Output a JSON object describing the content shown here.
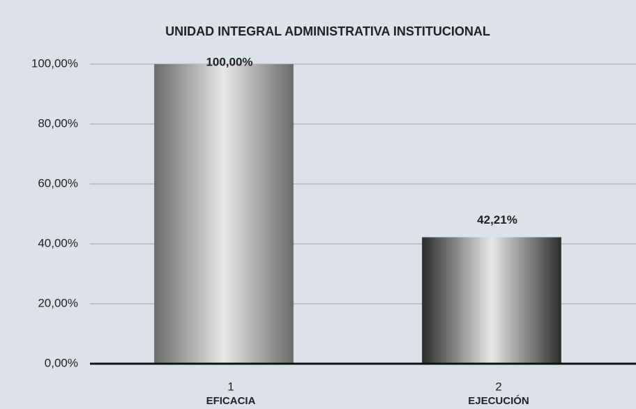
{
  "chart_data": {
    "type": "bar",
    "title": "UNIDAD INTEGRAL ADMINISTRATIVA INSTITUCIONAL",
    "categories": [
      "1",
      "2"
    ],
    "category_names": [
      "EFICACIA",
      "EJECUCIÓN"
    ],
    "values": [
      100,
      42.21
    ],
    "value_labels": [
      "100,00%",
      "42,21%"
    ],
    "colors": [
      "#6a6a6a",
      "#2b2b2b"
    ],
    "ylim": [
      0,
      100
    ],
    "yticks": [
      {
        "value": 0,
        "label": "0,00%"
      },
      {
        "value": 20,
        "label": "20,00%"
      },
      {
        "value": 40,
        "label": "40,00%"
      },
      {
        "value": 60,
        "label": "60,00%"
      },
      {
        "value": 80,
        "label": "80,00%"
      },
      {
        "value": 100,
        "label": "100,00%"
      }
    ],
    "grid": true
  }
}
